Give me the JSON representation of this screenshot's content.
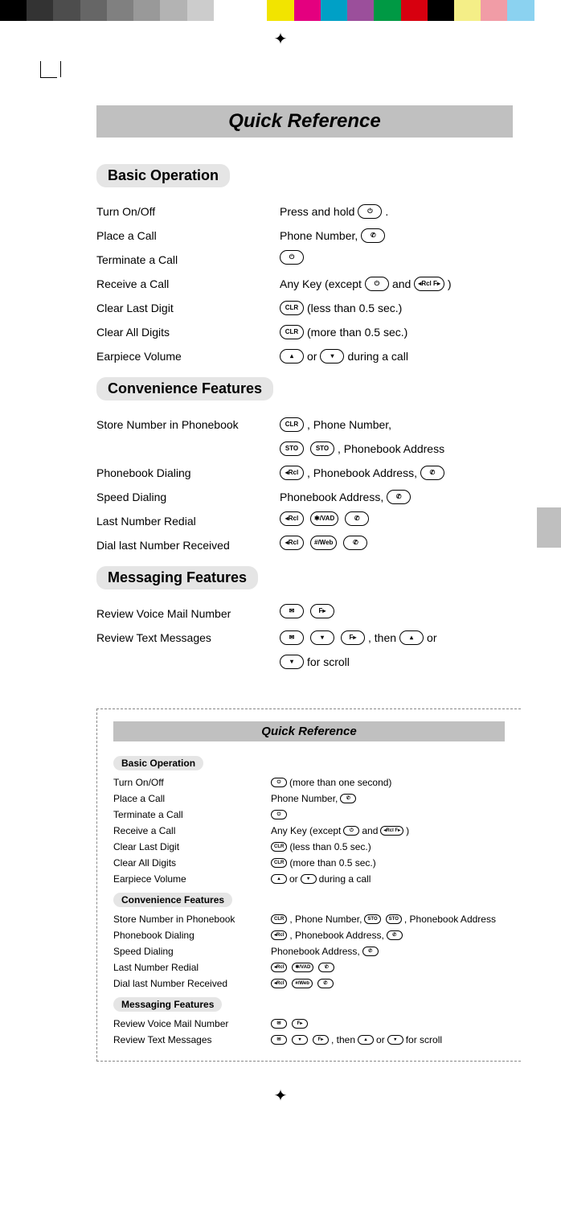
{
  "colorbar": [
    "#000000",
    "#333333",
    "#4d4d4d",
    "#666666",
    "#808080",
    "#999999",
    "#b3b3b3",
    "#cccccc",
    "#ffffff",
    "#ffffff",
    "#f2e400",
    "#e4007f",
    "#00a0c6",
    "#9b4f9b",
    "#009944",
    "#d7000f",
    "#000000",
    "#f4ee87",
    "#f19ca6",
    "#8bd2f0",
    "#ffffff"
  ],
  "title": "Quick Reference",
  "sections": {
    "basic": {
      "heading": "Basic Operation",
      "rows": [
        {
          "label": "Turn On/Off",
          "parts": [
            "Press and hold ",
            {
              "k": "⏻"
            },
            " ."
          ]
        },
        {
          "label": "Place a Call",
          "parts": [
            "Phone Number, ",
            {
              "k": "✆"
            }
          ]
        },
        {
          "label": "Terminate a Call",
          "parts": [
            {
              "k": "⏻"
            }
          ]
        },
        {
          "label": "Receive a Call",
          "parts": [
            "Any Key (except ",
            {
              "k": "⏻"
            },
            " and ",
            {
              "k": "◂Rcl F▸"
            },
            ")"
          ]
        },
        {
          "label": "Clear Last Digit",
          "parts": [
            {
              "k": "CLR"
            },
            " (less than 0.5 sec.)"
          ]
        },
        {
          "label": "Clear All Digits",
          "parts": [
            {
              "k": "CLR"
            },
            " (more than 0.5 sec.)"
          ]
        },
        {
          "label": "Earpiece Volume",
          "parts": [
            {
              "k": "▴"
            },
            " or ",
            {
              "k": "▾"
            },
            " during a call"
          ]
        }
      ]
    },
    "conv": {
      "heading": "Convenience Features",
      "rows": [
        {
          "label": "Store Number in Phonebook",
          "parts": [
            {
              "k": "CLR"
            },
            " , Phone Number,"
          ]
        },
        {
          "label": "",
          "parts": [
            {
              "k": "STO"
            },
            " ",
            {
              "k": "STO"
            },
            " , Phonebook Address"
          ]
        },
        {
          "label": "Phonebook Dialing",
          "parts": [
            {
              "k": "◂Rcl"
            },
            ", Phonebook Address, ",
            {
              "k": "✆"
            }
          ]
        },
        {
          "label": "Speed Dialing",
          "parts": [
            "Phonebook Address, ",
            {
              "k": "✆"
            }
          ]
        },
        {
          "label": "Last Number Redial",
          "parts": [
            {
              "k": "◂Rcl"
            },
            "  ",
            {
              "k": "✱/VAD"
            },
            "  ",
            {
              "k": "✆"
            }
          ]
        },
        {
          "label": "Dial last Number Received",
          "parts": [
            {
              "k": "◂Rcl"
            },
            "  ",
            {
              "k": "#/Web"
            },
            "  ",
            {
              "k": "✆"
            }
          ]
        }
      ]
    },
    "msg": {
      "heading": "Messaging Features",
      "rows": [
        {
          "label": "Review Voice Mail Number",
          "parts": [
            {
              "k": "✉"
            },
            "  ",
            {
              "k": "F▸"
            }
          ]
        },
        {
          "label": "Review Text Messages",
          "parts": [
            {
              "k": "✉"
            },
            " ",
            {
              "k": "▾"
            },
            " ",
            {
              "k": "F▸"
            },
            ", then ",
            {
              "k": "▴"
            },
            " or"
          ]
        },
        {
          "label": "",
          "parts": [
            {
              "k": "▾"
            },
            " for scroll"
          ]
        }
      ]
    }
  },
  "mini": {
    "title": "Quick Reference",
    "basic": {
      "heading": "Basic Operation",
      "rows": [
        {
          "label": "Turn On/Off",
          "parts": [
            {
              "k": "⏻"
            },
            " (more than one second)"
          ]
        },
        {
          "label": "Place a Call",
          "parts": [
            "Phone Number, ",
            {
              "k": "✆"
            }
          ]
        },
        {
          "label": "Terminate a Call",
          "parts": [
            {
              "k": "⏻"
            }
          ]
        },
        {
          "label": "Receive a Call",
          "parts": [
            "Any Key (except ",
            {
              "k": "⏻"
            },
            " and ",
            {
              "k": "◂Rcl F▸"
            },
            " )"
          ]
        },
        {
          "label": "Clear Last Digit",
          "parts": [
            {
              "k": "CLR"
            },
            " (less than 0.5 sec.)"
          ]
        },
        {
          "label": "Clear All Digits",
          "parts": [
            {
              "k": "CLR"
            },
            " (more than 0.5 sec.)"
          ]
        },
        {
          "label": "Earpiece Volume",
          "parts": [
            {
              "k": "▴"
            },
            " or ",
            {
              "k": "▾"
            },
            " during a call"
          ]
        }
      ]
    },
    "conv": {
      "heading": "Convenience Features",
      "rows": [
        {
          "label": "Store Number in Phonebook",
          "parts": [
            {
              "k": "CLR"
            },
            " , Phone Number, ",
            {
              "k": "STO"
            },
            " ",
            {
              "k": "STO"
            },
            " , Phonebook Address"
          ]
        },
        {
          "label": "Phonebook Dialing",
          "parts": [
            {
              "k": "◂Rcl"
            },
            ", Phonebook Address, ",
            {
              "k": "✆"
            }
          ]
        },
        {
          "label": "Speed Dialing",
          "parts": [
            "Phonebook Address, ",
            {
              "k": "✆"
            }
          ]
        },
        {
          "label": "Last Number Redial",
          "parts": [
            {
              "k": "◂Rcl"
            },
            "  ",
            {
              "k": "✱/VAD"
            },
            "  ",
            {
              "k": "✆"
            }
          ]
        },
        {
          "label": "Dial last Number Received",
          "parts": [
            {
              "k": "◂Rcl"
            },
            "  ",
            {
              "k": "#/Web"
            },
            "  ",
            {
              "k": "✆"
            }
          ]
        }
      ]
    },
    "msg": {
      "heading": "Messaging Features",
      "rows": [
        {
          "label": "Review Voice Mail Number",
          "parts": [
            {
              "k": "✉"
            },
            "  ",
            {
              "k": "F▸"
            }
          ]
        },
        {
          "label": "Review Text Messages",
          "parts": [
            {
              "k": "✉"
            },
            " ",
            {
              "k": "▾"
            },
            " ",
            {
              "k": "F▸"
            },
            " , then ",
            {
              "k": "▴"
            },
            " or ",
            {
              "k": "▾"
            },
            " for scroll"
          ]
        }
      ]
    }
  }
}
